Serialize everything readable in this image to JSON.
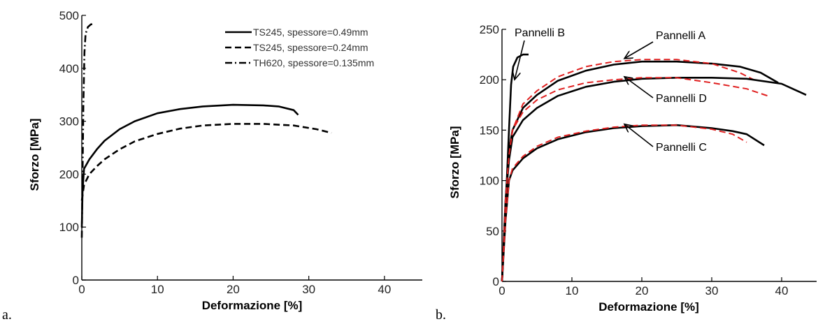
{
  "panels": {
    "a": {
      "letter": "a."
    },
    "b": {
      "letter": "b."
    }
  },
  "chart_data": [
    {
      "id": "a",
      "type": "line",
      "xlabel": "Deformazione [%]",
      "ylabel": "Sforzo [MPa]",
      "xlim": [
        0,
        45
      ],
      "ylim": [
        0,
        500
      ],
      "xticks": [
        0,
        10,
        20,
        30,
        40
      ],
      "yticks": [
        0,
        100,
        200,
        300,
        400,
        500
      ],
      "grid": false,
      "legend_position": "top-right",
      "series": [
        {
          "name": "TS245, spessore=0.49mm",
          "dash": "solid",
          "color": "#000000",
          "points": [
            [
              0,
              100
            ],
            [
              0.1,
              170
            ],
            [
              0.3,
              210
            ],
            [
              1,
              228
            ],
            [
              2,
              247
            ],
            [
              3,
              263
            ],
            [
              5,
              285
            ],
            [
              7,
              300
            ],
            [
              10,
              315
            ],
            [
              13,
              323
            ],
            [
              16,
              328
            ],
            [
              20,
              331
            ],
            [
              24,
              330
            ],
            [
              26,
              328
            ],
            [
              28,
              321
            ],
            [
              28.6,
              312
            ]
          ]
        },
        {
          "name": "TS245, spessore=0.24mm",
          "dash": "dashed",
          "color": "#000000",
          "points": [
            [
              0,
              150
            ],
            [
              0.3,
              180
            ],
            [
              1,
              200
            ],
            [
              2,
              215
            ],
            [
              3,
              228
            ],
            [
              5,
              247
            ],
            [
              7,
              262
            ],
            [
              10,
              276
            ],
            [
              13,
              286
            ],
            [
              16,
              292
            ],
            [
              20,
              295
            ],
            [
              24,
              295
            ],
            [
              28,
              292
            ],
            [
              31,
              285
            ],
            [
              33,
              278
            ]
          ]
        },
        {
          "name": "TH620, spessore=0.135mm",
          "dash": "dashdot",
          "color": "#000000",
          "points": [
            [
              0,
              80
            ],
            [
              0.1,
              200
            ],
            [
              0.2,
              330
            ],
            [
              0.35,
              430
            ],
            [
              0.5,
              465
            ],
            [
              0.8,
              478
            ],
            [
              1.2,
              483
            ],
            [
              1.6,
              484
            ]
          ]
        }
      ]
    },
    {
      "id": "b",
      "type": "line",
      "xlabel": "Deformazione [%]",
      "ylabel": "Sforzo [MPa]",
      "xlim": [
        0,
        45
      ],
      "ylim": [
        0,
        250
      ],
      "xticks": [
        0,
        10,
        20,
        30,
        40
      ],
      "yticks": [
        0,
        50,
        100,
        150,
        200,
        250
      ],
      "grid": false,
      "series": [
        {
          "group": "Pannelli A",
          "dash": "solid",
          "color": "#000000",
          "points": [
            [
              0,
              0
            ],
            [
              0.6,
              90
            ],
            [
              1,
              130
            ],
            [
              1.5,
              150
            ],
            [
              3,
              172
            ],
            [
              5,
              185
            ],
            [
              8,
              199
            ],
            [
              12,
              209
            ],
            [
              16,
              215
            ],
            [
              20,
              218
            ],
            [
              25,
              218
            ],
            [
              30,
              216
            ],
            [
              34,
              213
            ],
            [
              37,
              207
            ],
            [
              39.5,
              197
            ]
          ]
        },
        {
          "group": "Pannelli A",
          "dash": "dashed",
          "color": "#e02020",
          "points": [
            [
              0,
              0
            ],
            [
              0.5,
              80
            ],
            [
              1,
              125
            ],
            [
              1.5,
              150
            ],
            [
              3,
              176
            ],
            [
              5,
              189
            ],
            [
              8,
              203
            ],
            [
              12,
              213
            ],
            [
              16,
              218
            ],
            [
              20,
              220
            ],
            [
              25,
              220
            ],
            [
              30,
              216
            ],
            [
              34,
              207
            ],
            [
              36,
              200
            ]
          ]
        },
        {
          "group": "Pannelli B",
          "dash": "solid",
          "color": "#000000",
          "points": [
            [
              0,
              0
            ],
            [
              0.5,
              70
            ],
            [
              1,
              150
            ],
            [
              1.3,
              195
            ],
            [
              1.6,
              213
            ],
            [
              2.2,
              222
            ],
            [
              3,
              225
            ],
            [
              3.8,
              225
            ]
          ]
        },
        {
          "group": "Pannelli D",
          "dash": "solid",
          "color": "#000000",
          "points": [
            [
              0,
              0
            ],
            [
              0.5,
              80
            ],
            [
              1,
              120
            ],
            [
              1.5,
              143
            ],
            [
              3,
              160
            ],
            [
              5,
              172
            ],
            [
              8,
              184
            ],
            [
              12,
              193
            ],
            [
              16,
              198
            ],
            [
              20,
              201
            ],
            [
              25,
              202
            ],
            [
              30,
              202
            ],
            [
              35,
              201
            ],
            [
              40,
              196
            ],
            [
              43.5,
              185
            ]
          ]
        },
        {
          "group": "Pannelli D",
          "dash": "dashed",
          "color": "#e02020",
          "points": [
            [
              0,
              0
            ],
            [
              0.5,
              80
            ],
            [
              1,
              125
            ],
            [
              1.5,
              150
            ],
            [
              3,
              168
            ],
            [
              5,
              180
            ],
            [
              8,
              190
            ],
            [
              12,
              197
            ],
            [
              16,
              200
            ],
            [
              20,
              202
            ],
            [
              25,
              202
            ],
            [
              30,
              197
            ],
            [
              35,
              191
            ],
            [
              38,
              184
            ]
          ]
        },
        {
          "group": "Pannelli C",
          "dash": "solid",
          "color": "#000000",
          "points": [
            [
              0,
              0
            ],
            [
              0.5,
              60
            ],
            [
              1,
              100
            ],
            [
              1.5,
              110
            ],
            [
              3,
              122
            ],
            [
              5,
              132
            ],
            [
              8,
              141
            ],
            [
              12,
              148
            ],
            [
              16,
              152
            ],
            [
              20,
              154
            ],
            [
              25,
              155
            ],
            [
              30,
              152
            ],
            [
              33,
              149
            ],
            [
              35,
              146
            ],
            [
              37.5,
              135
            ]
          ]
        },
        {
          "group": "Pannelli C",
          "dash": "dashed",
          "color": "#e02020",
          "points": [
            [
              0,
              0
            ],
            [
              0.5,
              60
            ],
            [
              1,
              100
            ],
            [
              1.5,
              112
            ],
            [
              3,
              124
            ],
            [
              5,
              134
            ],
            [
              8,
              143
            ],
            [
              12,
              149
            ],
            [
              16,
              153
            ],
            [
              20,
              155
            ],
            [
              25,
              155
            ],
            [
              30,
              151
            ],
            [
              33,
              146
            ],
            [
              35,
              138
            ]
          ]
        }
      ],
      "annotations": [
        {
          "text": "Pannelli B",
          "target": [
            1.8,
            200
          ]
        },
        {
          "text": "Pannelli A",
          "target": [
            17.5,
            221
          ]
        },
        {
          "text": "Pannelli D",
          "target": [
            17.5,
            203
          ]
        },
        {
          "text": "Pannelli C",
          "target": [
            17.5,
            156
          ]
        }
      ]
    }
  ]
}
